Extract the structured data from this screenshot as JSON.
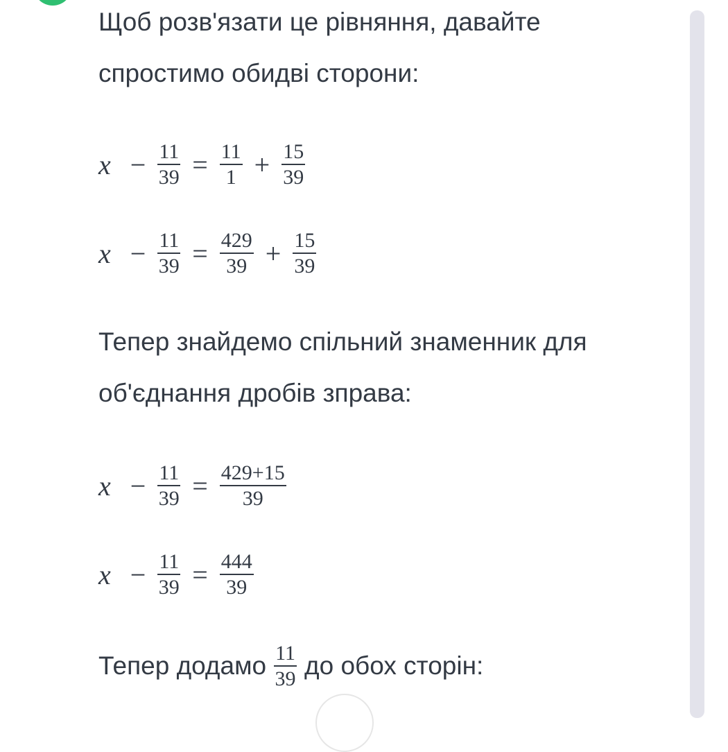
{
  "colors": {
    "accent": "#2fbf71",
    "text": "#333a44",
    "scrollbar": "#e3e3eb"
  },
  "paragraph1": {
    "line1": "Щоб розв'язати це рівняння, давайте",
    "line2": "спростимо обидві сторони:"
  },
  "equations": [
    [
      {
        "var": "x"
      },
      {
        "op": "−"
      },
      {
        "frac": [
          "11",
          "39"
        ]
      },
      {
        "op": "="
      },
      {
        "frac": [
          "11",
          "1"
        ]
      },
      {
        "op": "+"
      },
      {
        "frac": [
          "15",
          "39"
        ]
      }
    ],
    [
      {
        "var": "x"
      },
      {
        "op": "−"
      },
      {
        "frac": [
          "11",
          "39"
        ]
      },
      {
        "op": "="
      },
      {
        "frac": [
          "429",
          "39"
        ]
      },
      {
        "op": "+"
      },
      {
        "frac": [
          "15",
          "39"
        ]
      }
    ],
    [
      {
        "var": "x"
      },
      {
        "op": "−"
      },
      {
        "frac": [
          "11",
          "39"
        ]
      },
      {
        "op": "="
      },
      {
        "frac": [
          "429+15",
          "39"
        ]
      }
    ],
    [
      {
        "var": "x"
      },
      {
        "op": "−"
      },
      {
        "frac": [
          "11",
          "39"
        ]
      },
      {
        "op": "="
      },
      {
        "frac": [
          "444",
          "39"
        ]
      }
    ]
  ],
  "paragraph2": {
    "line1": "Тепер знайдемо спільний знаменник для",
    "line2": "об'єднання дробів зправа:"
  },
  "paragraph3": {
    "before": "Тепер додамо",
    "frac_num": "11",
    "frac_den": "39",
    "after": "до обох сторін:"
  }
}
